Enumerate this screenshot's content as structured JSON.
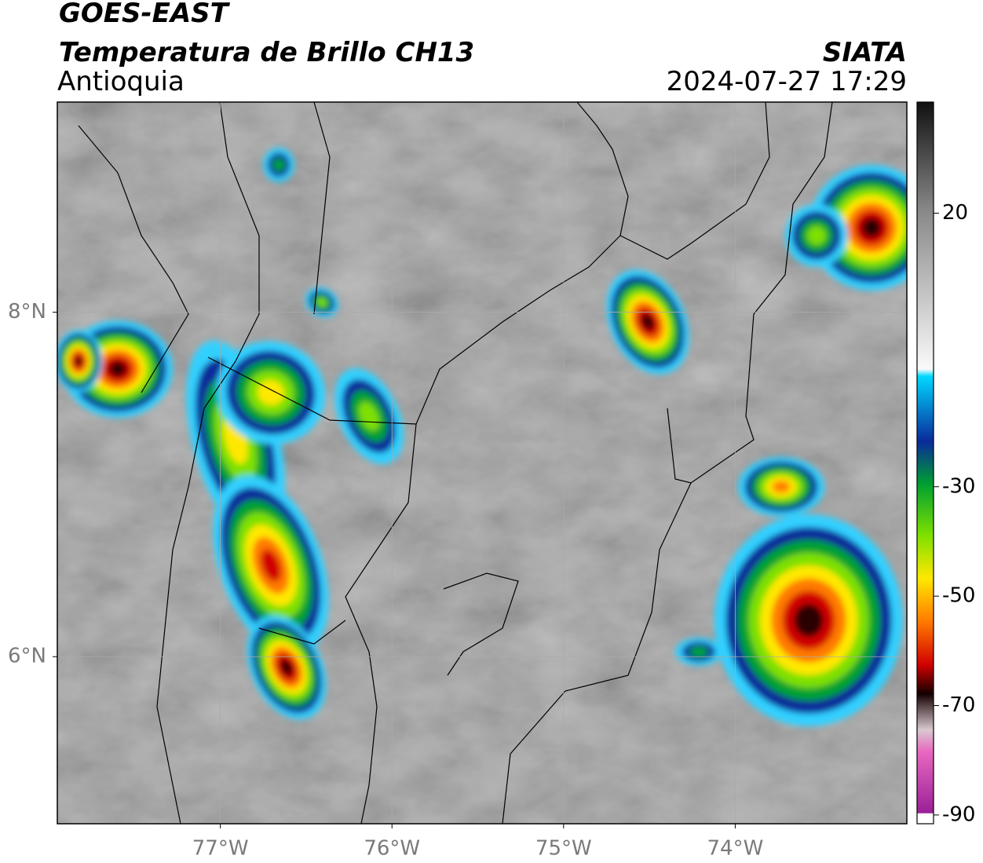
{
  "header": {
    "title": "GOES-EAST",
    "subtitle": "Temperatura de Brillo CH13",
    "region": "Antioquia",
    "source": "SIATA",
    "datetime": "2024-07-27 17:29"
  },
  "map": {
    "xlim": [
      -77.95,
      -73.0
    ],
    "ylim": [
      5.03,
      9.22
    ],
    "xticks": [
      {
        "value": -77,
        "label": "77°W"
      },
      {
        "value": -76,
        "label": "76°W"
      },
      {
        "value": -75,
        "label": "75°W"
      },
      {
        "value": -74,
        "label": "74°W"
      }
    ],
    "yticks": [
      {
        "value": 6,
        "label": "6°N"
      },
      {
        "value": 8,
        "label": "8°N"
      }
    ]
  },
  "colorbar": {
    "lim": [
      -91.6,
      40.3
    ],
    "ticks": [
      20,
      -30,
      -50,
      -70,
      -90
    ]
  }
}
